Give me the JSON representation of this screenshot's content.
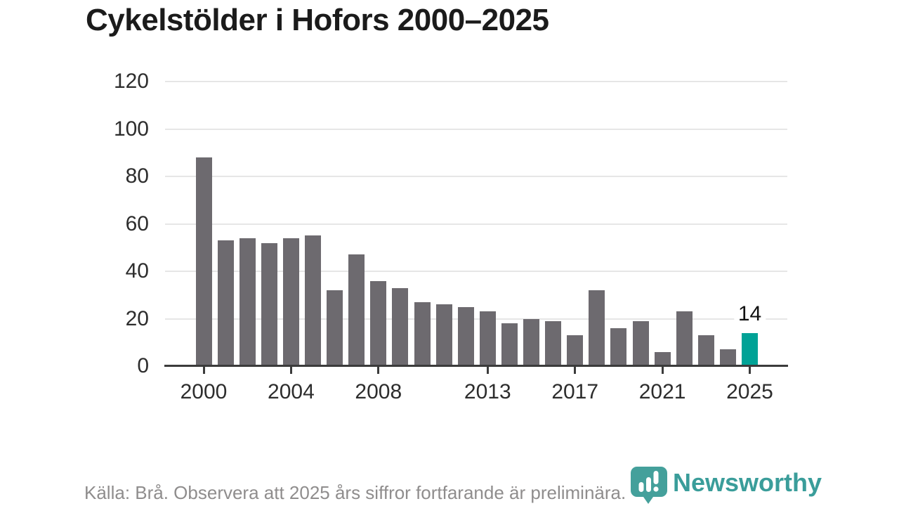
{
  "title": "Cykelstölder i Hofors 2000–2025",
  "chart_data": {
    "type": "bar",
    "title": "Cykelstölder i Hofors 2000–2025",
    "x": [
      2000,
      2001,
      2002,
      2003,
      2004,
      2005,
      2006,
      2007,
      2008,
      2009,
      2010,
      2011,
      2012,
      2013,
      2014,
      2015,
      2016,
      2017,
      2018,
      2019,
      2020,
      2021,
      2022,
      2023,
      2024,
      2025
    ],
    "values": [
      88,
      53,
      54,
      52,
      54,
      55,
      32,
      47,
      36,
      33,
      27,
      26,
      25,
      23,
      18,
      20,
      19,
      13,
      32,
      16,
      19,
      6,
      23,
      13,
      7,
      14
    ],
    "highlight": {
      "year": 2025,
      "value": 14,
      "label": "14"
    },
    "y_ticks": [
      0,
      20,
      40,
      60,
      80,
      100,
      120
    ],
    "x_tick_years": [
      2000,
      2004,
      2008,
      2013,
      2017,
      2021,
      2025
    ],
    "ylim": [
      0,
      120
    ],
    "grid": "horizontal-only",
    "legend": "none",
    "colors": {
      "bar": "#6d6a6f",
      "highlight_bar": "#00a296",
      "gridline": "#e6e6e6",
      "axis": "#3b3b3b",
      "tick_text": "#2d2d2d",
      "title_text": "#1b1b1b"
    }
  },
  "footer": {
    "source": "Källa: Brå. Observera att 2025 års siffror fortfarande är preliminära."
  },
  "logo": {
    "text": "Newsworthy",
    "color": "#3a9d9a",
    "icon": "newsworthy-speech-bubble-bar-chart-icon"
  }
}
